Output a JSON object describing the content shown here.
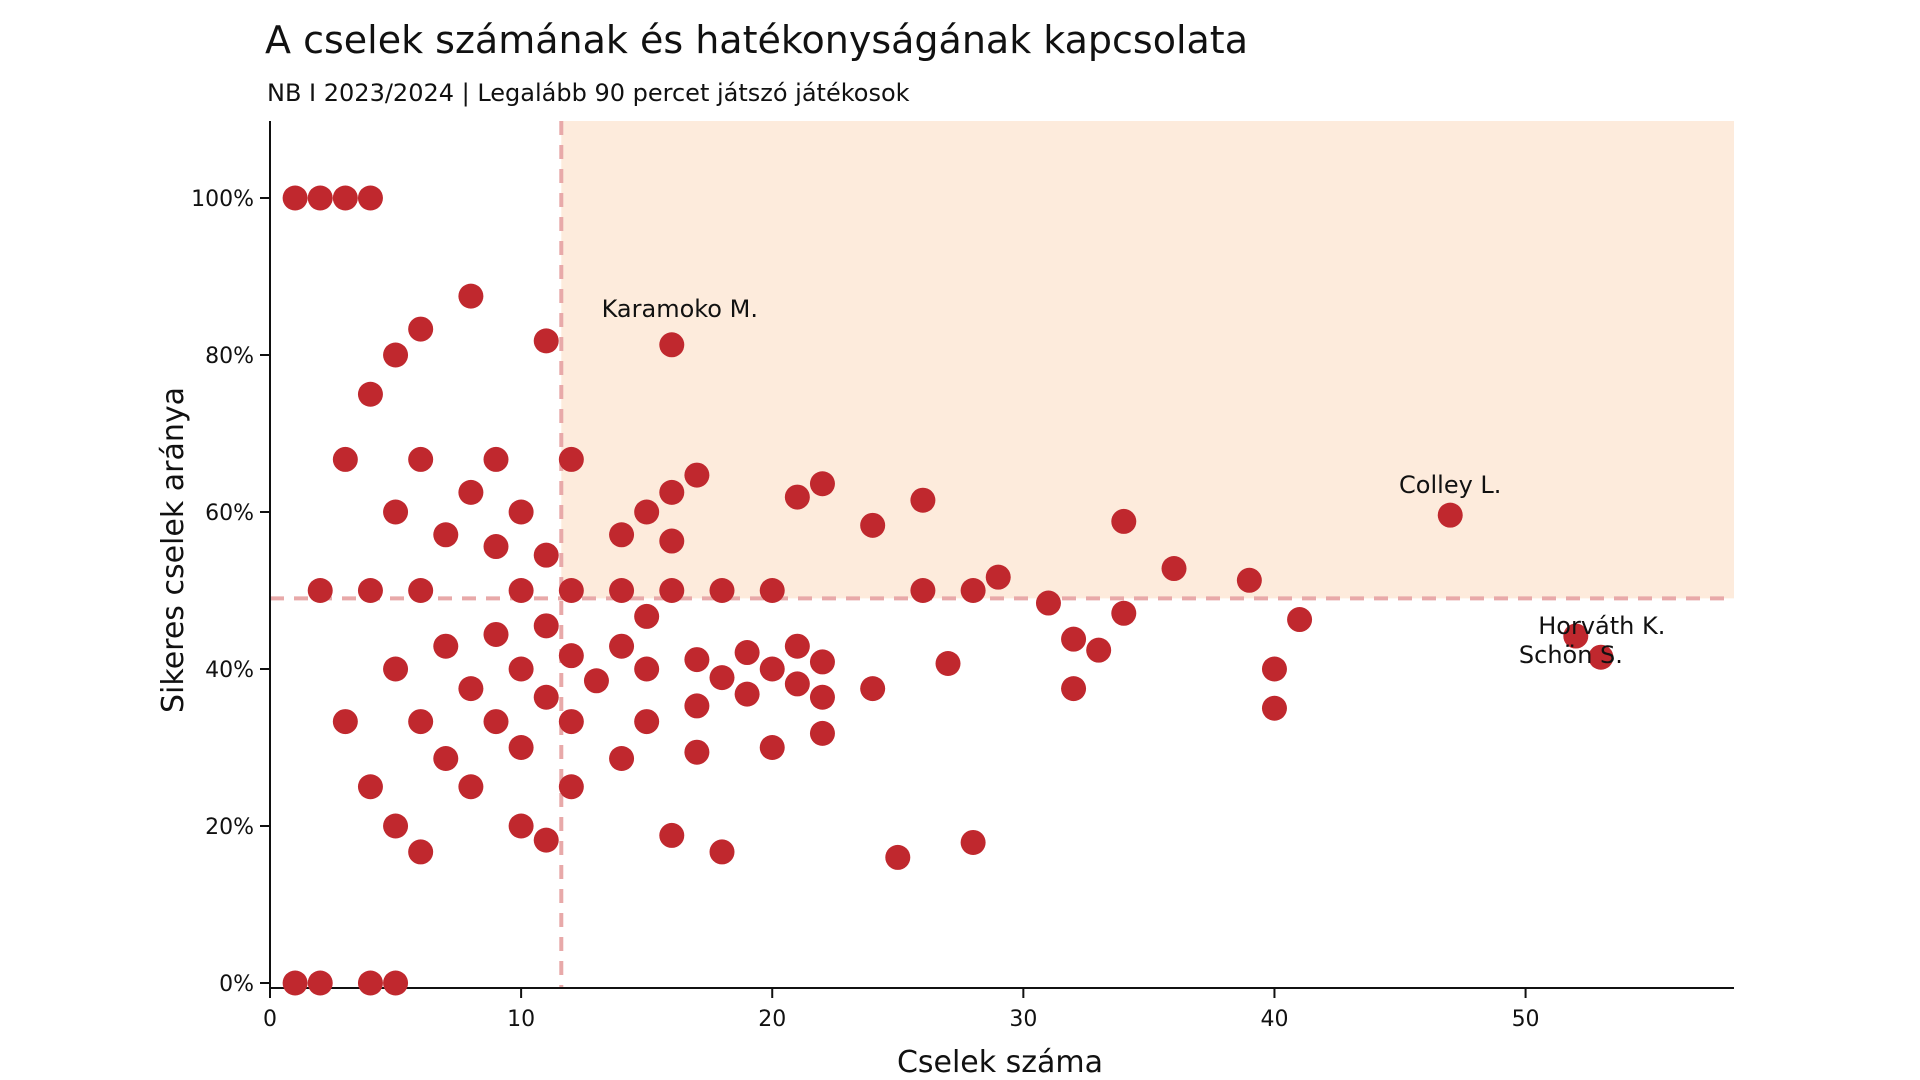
{
  "chart_data": {
    "type": "scatter",
    "title": "A cselek számának és hatékonyságának kapcsolata",
    "subtitle": "NB I 2023/2024 | Legalább 90 percet játszó játékosok",
    "xlabel": "Cselek száma",
    "ylabel": "Sikeres cselek aránya",
    "xlim": [
      0,
      58.3
    ],
    "ylim": [
      0,
      110
    ],
    "x_ticks": [
      0,
      10,
      20,
      30,
      40,
      50
    ],
    "y_ticks": [
      0,
      20,
      40,
      60,
      80,
      100
    ],
    "y_tick_suffix": "%",
    "x_threshold": 11.6,
    "y_threshold": 49,
    "colors": {
      "point": "#c0282e",
      "highlight": "#fdebdc",
      "threshold": "#e8a9a9"
    },
    "grid": false,
    "annotations": [
      {
        "label": "Karamoko M.",
        "x": 16,
        "y": 81.3
      },
      {
        "label": "Colley L.",
        "x": 47,
        "y": 59.6
      },
      {
        "label": "Horváth K.",
        "x": 52,
        "y": 44.2
      },
      {
        "label": "Schön S.",
        "x": 53,
        "y": 41.5
      }
    ],
    "points": [
      [
        1,
        100
      ],
      [
        2,
        100
      ],
      [
        3,
        100
      ],
      [
        4,
        100
      ],
      [
        1,
        0
      ],
      [
        2,
        0
      ],
      [
        4,
        0
      ],
      [
        5,
        0
      ],
      [
        8,
        87.5
      ],
      [
        6,
        83.3
      ],
      [
        5,
        80
      ],
      [
        4,
        75
      ],
      [
        11,
        81.8
      ],
      [
        16,
        81.3
      ],
      [
        3,
        66.7
      ],
      [
        6,
        66.7
      ],
      [
        9,
        66.7
      ],
      [
        12,
        66.7
      ],
      [
        17,
        64.7
      ],
      [
        22,
        63.6
      ],
      [
        8,
        62.5
      ],
      [
        16,
        62.5
      ],
      [
        21,
        61.9
      ],
      [
        26,
        61.5
      ],
      [
        5,
        60
      ],
      [
        10,
        60
      ],
      [
        15,
        60
      ],
      [
        34,
        58.8
      ],
      [
        24,
        58.3
      ],
      [
        7,
        57.1
      ],
      [
        14,
        57.1
      ],
      [
        9,
        55.6
      ],
      [
        16,
        56.3
      ],
      [
        11,
        54.5
      ],
      [
        36,
        52.8
      ],
      [
        29,
        51.7
      ],
      [
        39,
        51.3
      ],
      [
        2,
        50
      ],
      [
        4,
        50
      ],
      [
        6,
        50
      ],
      [
        10,
        50
      ],
      [
        12,
        50
      ],
      [
        14,
        50
      ],
      [
        16,
        50
      ],
      [
        18,
        50
      ],
      [
        20,
        50
      ],
      [
        26,
        50
      ],
      [
        28,
        50
      ],
      [
        31,
        48.4
      ],
      [
        15,
        46.7
      ],
      [
        34,
        47.1
      ],
      [
        41,
        46.3
      ],
      [
        9,
        44.4
      ],
      [
        11,
        45.5
      ],
      [
        32,
        43.8
      ],
      [
        33,
        42.4
      ],
      [
        7,
        42.9
      ],
      [
        14,
        42.9
      ],
      [
        21,
        42.9
      ],
      [
        12,
        41.7
      ],
      [
        17,
        41.2
      ],
      [
        19,
        42.1
      ],
      [
        22,
        40.9
      ],
      [
        27,
        40.7
      ],
      [
        5,
        40
      ],
      [
        10,
        40
      ],
      [
        15,
        40
      ],
      [
        20,
        40
      ],
      [
        40,
        40
      ],
      [
        13,
        38.5
      ],
      [
        18,
        38.9
      ],
      [
        21,
        38.1
      ],
      [
        8,
        37.5
      ],
      [
        24,
        37.5
      ],
      [
        32,
        37.5
      ],
      [
        19,
        36.8
      ],
      [
        11,
        36.4
      ],
      [
        22,
        36.4
      ],
      [
        17,
        35.3
      ],
      [
        40,
        35
      ],
      [
        3,
        33.3
      ],
      [
        6,
        33.3
      ],
      [
        9,
        33.3
      ],
      [
        12,
        33.3
      ],
      [
        15,
        33.3
      ],
      [
        22,
        31.8
      ],
      [
        10,
        30
      ],
      [
        20,
        30
      ],
      [
        17,
        29.4
      ],
      [
        7,
        28.6
      ],
      [
        14,
        28.6
      ],
      [
        4,
        25
      ],
      [
        8,
        25
      ],
      [
        12,
        25
      ],
      [
        5,
        20
      ],
      [
        10,
        20
      ],
      [
        16,
        18.8
      ],
      [
        11,
        18.2
      ],
      [
        28,
        17.9
      ],
      [
        6,
        16.7
      ],
      [
        18,
        16.7
      ],
      [
        25,
        16
      ],
      [
        52,
        44.2
      ],
      [
        53,
        41.5
      ],
      [
        47,
        59.6
      ]
    ]
  }
}
